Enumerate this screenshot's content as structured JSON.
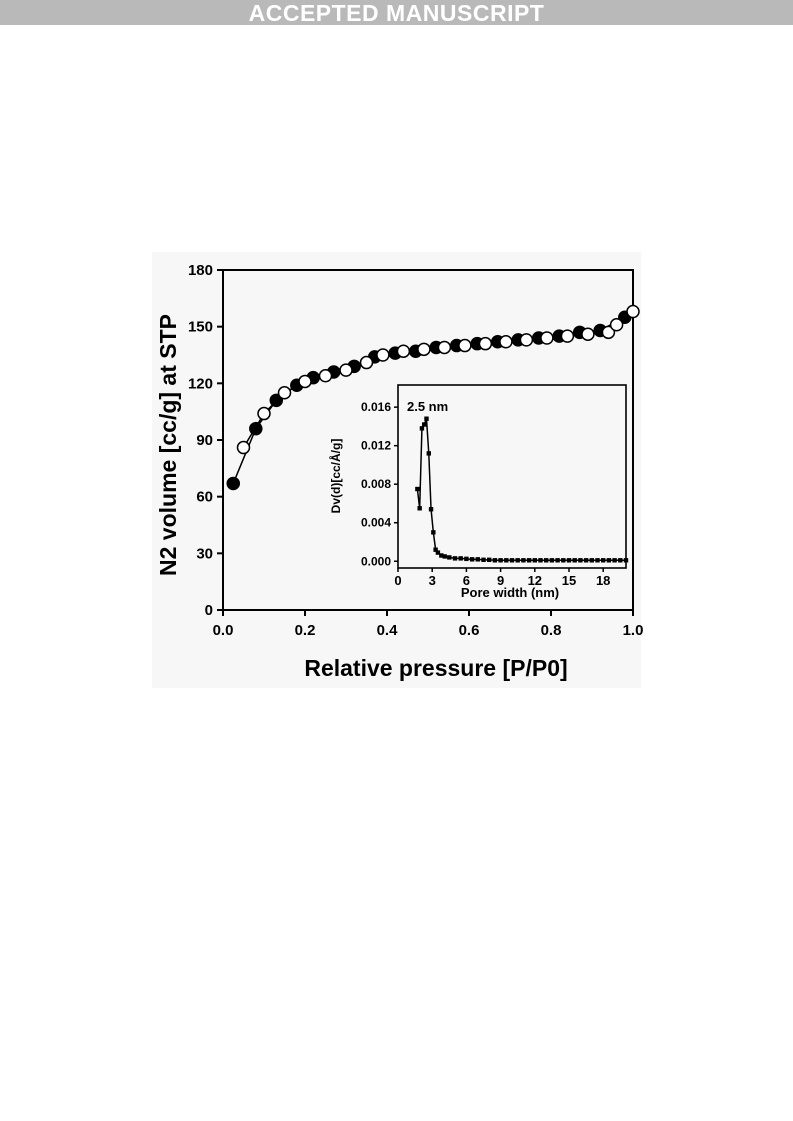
{
  "header": {
    "banner": "ACCEPTED MANUSCRIPT"
  },
  "chart_data": [
    {
      "type": "scatter",
      "title": "",
      "xlabel": "Relative pressure [P/P0]",
      "ylabel": "N2 volume [cc/g] at STP",
      "xlim": [
        0.0,
        1.0
      ],
      "ylim": [
        0,
        180
      ],
      "xticks": [
        "0.0",
        "0.2",
        "0.4",
        "0.6",
        "0.8",
        "1.0"
      ],
      "yticks": [
        "0",
        "30",
        "60",
        "90",
        "120",
        "150",
        "180"
      ],
      "grid": false,
      "series": [
        {
          "marker": "filled-circle",
          "color": "#000000",
          "x": [
            0.025,
            0.08,
            0.13,
            0.18,
            0.22,
            0.27,
            0.32,
            0.37,
            0.42,
            0.47,
            0.52,
            0.57,
            0.62,
            0.67,
            0.72,
            0.77,
            0.82,
            0.87,
            0.92,
            0.98
          ],
          "y": [
            67,
            96,
            111,
            119,
            123,
            126,
            129,
            134,
            136,
            137,
            139,
            140,
            141,
            142,
            143,
            144,
            145,
            147,
            148,
            155
          ]
        },
        {
          "marker": "open-circle",
          "color": "#000000",
          "x": [
            0.05,
            0.1,
            0.15,
            0.2,
            0.25,
            0.3,
            0.35,
            0.39,
            0.44,
            0.49,
            0.54,
            0.59,
            0.64,
            0.69,
            0.74,
            0.79,
            0.84,
            0.89,
            0.94,
            0.96,
            1.0
          ],
          "y": [
            86,
            104,
            115,
            121,
            124,
            127,
            131,
            135,
            137,
            138,
            139,
            140,
            141,
            142,
            143,
            144,
            145,
            146,
            147,
            151,
            158
          ]
        }
      ]
    },
    {
      "type": "line",
      "title": "",
      "xlabel": "Pore width (nm)",
      "ylabel": "Dv(d)[cc/Å/g]",
      "xlim": [
        0,
        20
      ],
      "ylim": [
        -0.0007,
        0.0183
      ],
      "xticks": [
        "0",
        "3",
        "6",
        "9",
        "12",
        "15",
        "18"
      ],
      "yticks": [
        "0.000",
        "0.004",
        "0.008",
        "0.012",
        "0.016"
      ],
      "annotation": "2.5 nm",
      "grid": false,
      "series": [
        {
          "marker": "filled-square",
          "color": "#000000",
          "x": [
            1.7,
            1.9,
            2.1,
            2.3,
            2.5,
            2.7,
            2.9,
            3.1,
            3.3,
            3.5,
            3.8,
            4.1,
            4.5,
            5.0,
            5.5,
            6.0,
            6.5,
            7.0,
            7.5,
            8.0,
            8.5,
            9.0,
            9.5,
            10.0,
            10.5,
            11.0,
            11.5,
            12.0,
            12.5,
            13.0,
            13.5,
            14.0,
            14.5,
            15.0,
            15.5,
            16.0,
            16.5,
            17.0,
            17.5,
            18.0,
            18.5,
            19.0,
            19.5,
            20.0
          ],
          "y": [
            0.0075,
            0.0055,
            0.0138,
            0.0142,
            0.0148,
            0.0112,
            0.0054,
            0.003,
            0.0012,
            0.0009,
            0.0006,
            0.0005,
            0.0004,
            0.0003,
            0.0003,
            0.00025,
            0.0002,
            0.0002,
            0.00015,
            0.00015,
            0.0001,
            0.0001,
            0.0001,
            0.0001,
            0.0001,
            0.0001,
            0.0001,
            0.0001,
            0.0001,
            0.0001,
            0.0001,
            0.0001,
            0.0001,
            0.0001,
            0.0001,
            0.0001,
            0.0001,
            0.0001,
            0.0001,
            0.0001,
            0.0001,
            0.0001,
            0.0001,
            0.0001
          ]
        }
      ]
    }
  ]
}
